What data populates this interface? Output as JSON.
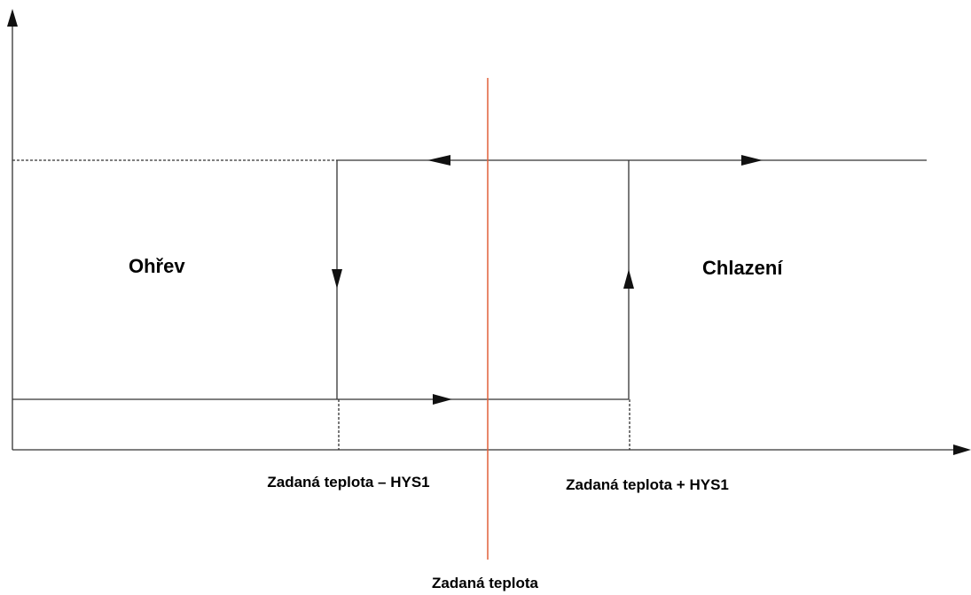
{
  "labels": {
    "heating": "Ohřev",
    "cooling": "Chlazení",
    "lower": "Zadaná teplota – HYS1",
    "upper": "Zadaná teplota + HYS1",
    "setpoint": "Zadaná teplota"
  }
}
